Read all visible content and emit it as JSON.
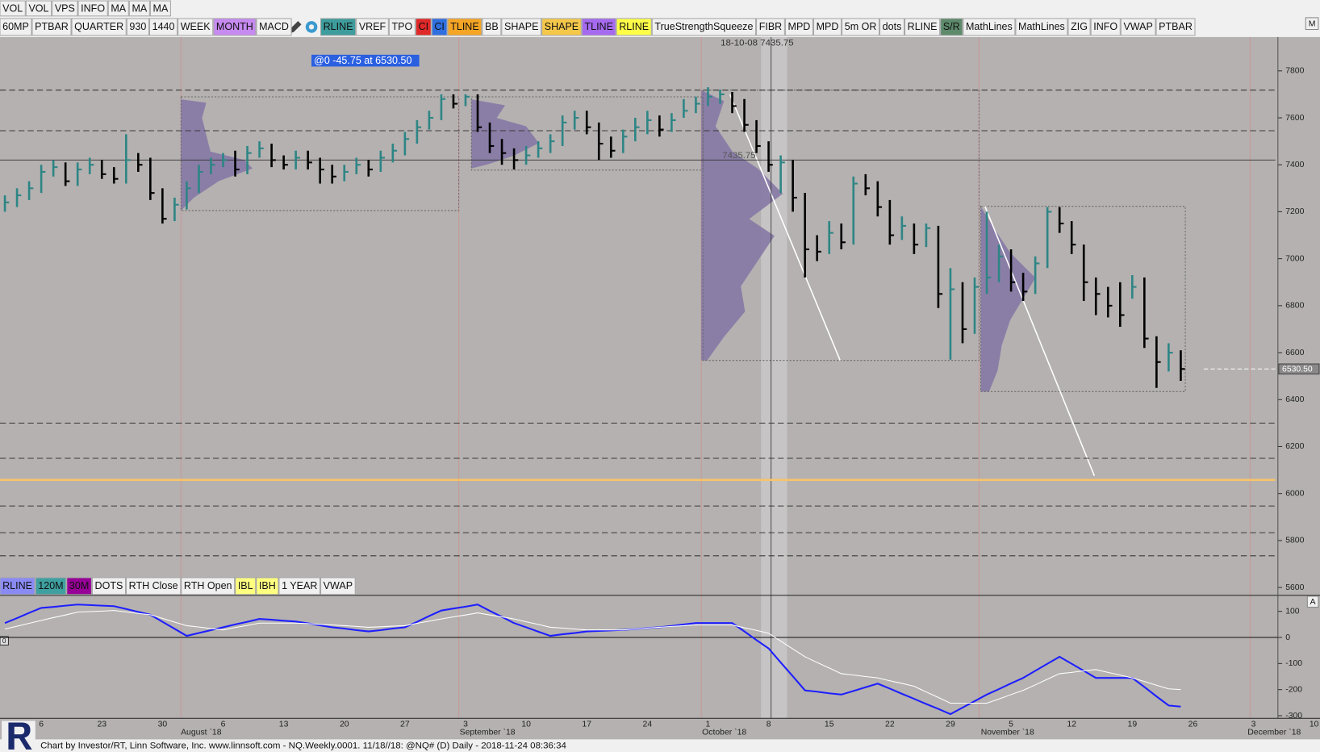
{
  "toolbar_top": [
    {
      "label": "VOL"
    },
    {
      "label": "VOL"
    },
    {
      "label": "VPS"
    },
    {
      "label": "INFO"
    },
    {
      "label": "MA"
    },
    {
      "label": "MA"
    },
    {
      "label": "MA"
    }
  ],
  "toolbar_main_left": [
    {
      "label": "60MP"
    },
    {
      "label": "PTBAR"
    },
    {
      "label": "QUARTER"
    },
    {
      "label": "930"
    },
    {
      "label": "1440"
    },
    {
      "label": "WEEK"
    },
    {
      "label": "MONTH",
      "color": "#c68af0"
    },
    {
      "label": "MACD"
    }
  ],
  "toolbar_main_right": [
    {
      "label": "RLINE",
      "color": "#3e9c9c"
    },
    {
      "label": "VREF"
    },
    {
      "label": "TPO"
    },
    {
      "label": "CI",
      "color": "#e02828"
    },
    {
      "label": "CI",
      "color": "#2f6fe0"
    },
    {
      "label": "TLINE",
      "color": "#f5a524"
    },
    {
      "label": "BB"
    },
    {
      "label": "SHAPE"
    },
    {
      "label": "SHAPE",
      "color": "#f5c84a"
    },
    {
      "label": "TLINE",
      "color": "#a66af0"
    },
    {
      "label": "RLINE",
      "color": "#ffff48"
    },
    {
      "label": "TrueStrengthSqueeze"
    },
    {
      "label": "FIBR"
    },
    {
      "label": "MPD"
    },
    {
      "label": "MPD"
    },
    {
      "label": "5m OR"
    },
    {
      "label": "dots"
    },
    {
      "label": "RLINE"
    },
    {
      "label": "S/R",
      "color": "#5e8a6c"
    },
    {
      "label": "MathLines"
    },
    {
      "label": "MathLines"
    },
    {
      "label": "ZIG"
    },
    {
      "label": "INFO"
    },
    {
      "label": "VWAP"
    },
    {
      "label": "PTBAR"
    }
  ],
  "indicator_bar": [
    {
      "label": "RLINE",
      "color": "#8a8af5"
    },
    {
      "label": "120M",
      "color": "#3fa0a0"
    },
    {
      "label": "30M",
      "color": "#960096"
    },
    {
      "label": "DOTS"
    },
    {
      "label": "RTH Close"
    },
    {
      "label": "RTH Open"
    },
    {
      "label": "IBL",
      "color": "#ffff80"
    },
    {
      "label": "IBH",
      "color": "#ffff80"
    },
    {
      "label": "1 YEAR"
    },
    {
      "label": "VWAP"
    }
  ],
  "corner_labels": {
    "main": "M",
    "oscillator": "A"
  },
  "crosshair_info": "18-10-08 7435.75",
  "crosshair_price": "7435.75",
  "cursor_readout": "@0  -45.75 at 6530.50",
  "oscillator_marker": "0",
  "footer": "Chart by Investor/RT, Linn Software, Inc. www.linnsoft.com - NQ.Weekly.0001.  11/18//18: @NQ# (D) Daily - 2018-11-24 08:36:34",
  "chart_data": [
    {
      "type": "ohlc",
      "categories": [
        null,
        null,
        null,
        "6",
        null,
        null,
        null,
        null,
        "23",
        null,
        null,
        null,
        null,
        "30",
        null,
        null,
        null,
        null,
        "6",
        null,
        null,
        null,
        null,
        "13",
        null,
        null,
        null,
        null,
        "20",
        null,
        null,
        null,
        null,
        "27",
        null,
        null,
        null,
        null,
        "3",
        null,
        null,
        null,
        null,
        "10",
        null,
        null,
        null,
        null,
        "17",
        null,
        null,
        null,
        null,
        "24",
        null,
        null,
        null,
        null,
        "1",
        null,
        null,
        null,
        null,
        "8",
        null,
        null,
        null,
        null,
        "15",
        null,
        null,
        null,
        null,
        "22",
        null,
        null,
        null,
        null,
        "29",
        null,
        null,
        null,
        null,
        "5",
        null,
        null,
        null,
        null,
        "12",
        null,
        null,
        null,
        null,
        "19",
        null,
        null,
        null,
        null,
        "26",
        null,
        null,
        null,
        null,
        "3",
        null,
        null,
        null,
        null,
        "10"
      ],
      "month_labels": [
        null,
        null,
        null,
        null,
        null,
        null,
        null,
        null,
        null,
        null,
        null,
        null,
        null,
        null,
        null,
        "August `18",
        null,
        null,
        null,
        null,
        null,
        null,
        null,
        null,
        null,
        null,
        null,
        null,
        null,
        null,
        null,
        null,
        null,
        null,
        null,
        null,
        null,
        null,
        "September `18",
        null,
        null,
        null,
        null,
        null,
        null,
        null,
        null,
        null,
        null,
        null,
        null,
        null,
        null,
        null,
        null,
        null,
        null,
        null,
        "October `18",
        null,
        null,
        null,
        null,
        null,
        null,
        null,
        null,
        null,
        null,
        null,
        null,
        null,
        null,
        null,
        null,
        null,
        null,
        null,
        null,
        null,
        null,
        "November `18",
        null,
        null,
        null,
        null,
        null,
        null,
        null,
        null,
        null,
        null,
        null,
        null,
        null,
        null,
        null,
        null,
        null,
        null,
        null,
        null,
        null,
        "December `18",
        null,
        null,
        null,
        null,
        null
      ],
      "high": [
        7270,
        7300,
        7330,
        7400,
        7420,
        7410,
        7410,
        7430,
        7420,
        7390,
        7530,
        7450,
        7430,
        7300,
        7260,
        7330,
        7400,
        7430,
        7450,
        7460,
        7480,
        7500,
        7490,
        7440,
        7460,
        7460,
        7430,
        7400,
        7400,
        7430,
        7420,
        7460,
        7490,
        7540,
        7590,
        7630,
        7700,
        7700,
        7700,
        7700,
        7580,
        7510,
        7470,
        7480,
        7500,
        7530,
        7610,
        7630,
        7630,
        7580,
        7520,
        7550,
        7600,
        7630,
        7610,
        7620,
        7680,
        7690,
        7730,
        7720,
        7710,
        7680,
        7590,
        7500,
        7440,
        7420,
        7280,
        7100,
        7160,
        7150,
        7350,
        7360,
        7330,
        7250,
        7180,
        7150,
        7150,
        7140,
        6960,
        6900,
        6920,
        7200,
        7060,
        7040,
        6940,
        7010,
        7220,
        7220,
        7160,
        7060,
        6920,
        6880,
        6900,
        6930,
        6920,
        6670,
        6640,
        6610,
        null,
        null,
        null,
        null,
        null,
        null,
        null,
        null,
        null,
        null,
        null
      ],
      "low": [
        7200,
        7220,
        7250,
        7280,
        7350,
        7310,
        7310,
        7360,
        7340,
        7320,
        7320,
        7370,
        7250,
        7150,
        7160,
        7210,
        7280,
        7360,
        7390,
        7350,
        7360,
        7430,
        7390,
        7380,
        7380,
        7380,
        7320,
        7320,
        7330,
        7360,
        7350,
        7370,
        7410,
        7440,
        7490,
        7550,
        7590,
        7640,
        7650,
        7540,
        7450,
        7400,
        7380,
        7400,
        7430,
        7450,
        7480,
        7550,
        7530,
        7420,
        7430,
        7450,
        7500,
        7530,
        7520,
        7540,
        7600,
        7620,
        7650,
        7660,
        7620,
        7540,
        7450,
        7370,
        7280,
        7200,
        6920,
        6990,
        7020,
        7040,
        7060,
        7270,
        7180,
        7060,
        7080,
        7020,
        7050,
        6790,
        6570,
        6640,
        6680,
        6850,
        6900,
        6860,
        6820,
        6850,
        6960,
        7110,
        7020,
        6820,
        6760,
        6750,
        6710,
        6830,
        6620,
        6450,
        6520,
        6480,
        null,
        null,
        null,
        null,
        null,
        null,
        null,
        null,
        null,
        null,
        null
      ],
      "close": [
        7240,
        7270,
        7300,
        7370,
        7390,
        7330,
        7380,
        7400,
        7360,
        7340,
        7420,
        7400,
        7280,
        7170,
        7230,
        7300,
        7370,
        7400,
        7420,
        7380,
        7450,
        7470,
        7420,
        7400,
        7430,
        7410,
        7380,
        7350,
        7370,
        7400,
        7380,
        7430,
        7460,
        7510,
        7560,
        7600,
        7680,
        7660,
        7690,
        7560,
        7480,
        7450,
        7420,
        7440,
        7470,
        7500,
        7580,
        7600,
        7560,
        7490,
        7460,
        7520,
        7560,
        7590,
        7550,
        7590,
        7630,
        7660,
        7690,
        7700,
        7650,
        7570,
        7480,
        7400,
        7410,
        7260,
        7040,
        7030,
        7110,
        7070,
        7320,
        7300,
        7220,
        7100,
        7140,
        7060,
        7130,
        6850,
        6870,
        6700,
        6880,
        6920,
        7010,
        6900,
        6860,
        6980,
        7200,
        7150,
        7060,
        6900,
        6850,
        6800,
        6760,
        6880,
        6660,
        6560,
        6600,
        6530.5,
        null,
        null,
        null,
        null,
        null,
        null,
        null,
        null,
        null,
        null,
        null
      ],
      "colors": {
        "up": "#2e8585",
        "down": "#000000"
      },
      "last_price_label": "6530.50",
      "ylim": [
        5570,
        8030
      ],
      "yticks": [
        5600,
        5800,
        6000,
        6200,
        6400,
        6600,
        6800,
        7000,
        7200,
        7400,
        7600,
        7800
      ],
      "levels": [
        {
          "value": 7718,
          "color": "#3a3a3a",
          "dashed": true
        },
        {
          "value": 7545,
          "color": "#3a3a3a",
          "dashed": true
        },
        {
          "value": 6300,
          "color": "#3a3a3a",
          "dashed": true
        },
        {
          "value": 6150,
          "color": "#3a3a3a",
          "dashed": true
        },
        {
          "value": 5947,
          "color": "#3a3a3a",
          "dashed": true
        },
        {
          "value": 5833,
          "color": "#3a3a3a",
          "dashed": true
        },
        {
          "value": 5735,
          "color": "#3a3a3a",
          "dashed": true
        },
        {
          "value": 6058,
          "color": "#f7c46a",
          "dashed": false
        }
      ]
    },
    {
      "type": "line",
      "series": [
        {
          "color": "#1f1fff",
          "values": [
            55,
            74,
            94,
            113,
            117,
            122,
            126,
            124,
            122,
            120,
            109,
            98,
            87,
            60,
            33,
            6,
            17,
            28,
            39,
            50,
            60,
            71,
            68,
            64,
            61,
            54,
            46,
            39,
            34,
            28,
            23,
            28,
            34,
            39,
            60,
            82,
            103,
            111,
            118,
            126,
            102,
            79,
            55,
            39,
            22,
            6,
            12,
            17,
            23,
            25,
            27,
            29,
            32,
            36,
            39,
            44,
            50,
            55,
            55,
            55,
            55,
            23,
            -10,
            -42,
            -96,
            -149,
            -203,
            -208,
            -214,
            -219,
            -205,
            -191,
            -177,
            -196,
            -216,
            -235,
            -255,
            -274,
            -294,
            -269,
            -244,
            -219,
            -198,
            -176,
            -155,
            -128,
            -101,
            -74,
            -101,
            -128,
            -155,
            -155,
            -155,
            -155,
            -190,
            -226,
            -261,
            -265
          ]
        },
        {
          "color": "#ffffff",
          "values": [
            32,
            43,
            54,
            65,
            76,
            86,
            97,
            99,
            101,
            103,
            98,
            92,
            87,
            73,
            59,
            45,
            40,
            34,
            29,
            38,
            46,
            55,
            55,
            55,
            55,
            53,
            50,
            48,
            45,
            42,
            39,
            41,
            43,
            45,
            54,
            62,
            71,
            79,
            86,
            94,
            86,
            79,
            71,
            60,
            50,
            39,
            36,
            32,
            29,
            29,
            29,
            29,
            32,
            36,
            39,
            42,
            45,
            48,
            48,
            48,
            48,
            37,
            27,
            16,
            -14,
            -44,
            -74,
            -96,
            -117,
            -139,
            -144,
            -150,
            -155,
            -166,
            -176,
            -187,
            -209,
            -230,
            -252,
            -252,
            -252,
            -252,
            -236,
            -219,
            -203,
            -182,
            -160,
            -139,
            -134,
            -128,
            -123,
            -134,
            -144,
            -155,
            -169,
            -183,
            -197,
            -200
          ]
        }
      ],
      "ylim": [
        -310,
        158
      ],
      "yticks": [
        100,
        0,
        -100,
        -200,
        -300
      ],
      "zero_line": true
    }
  ]
}
